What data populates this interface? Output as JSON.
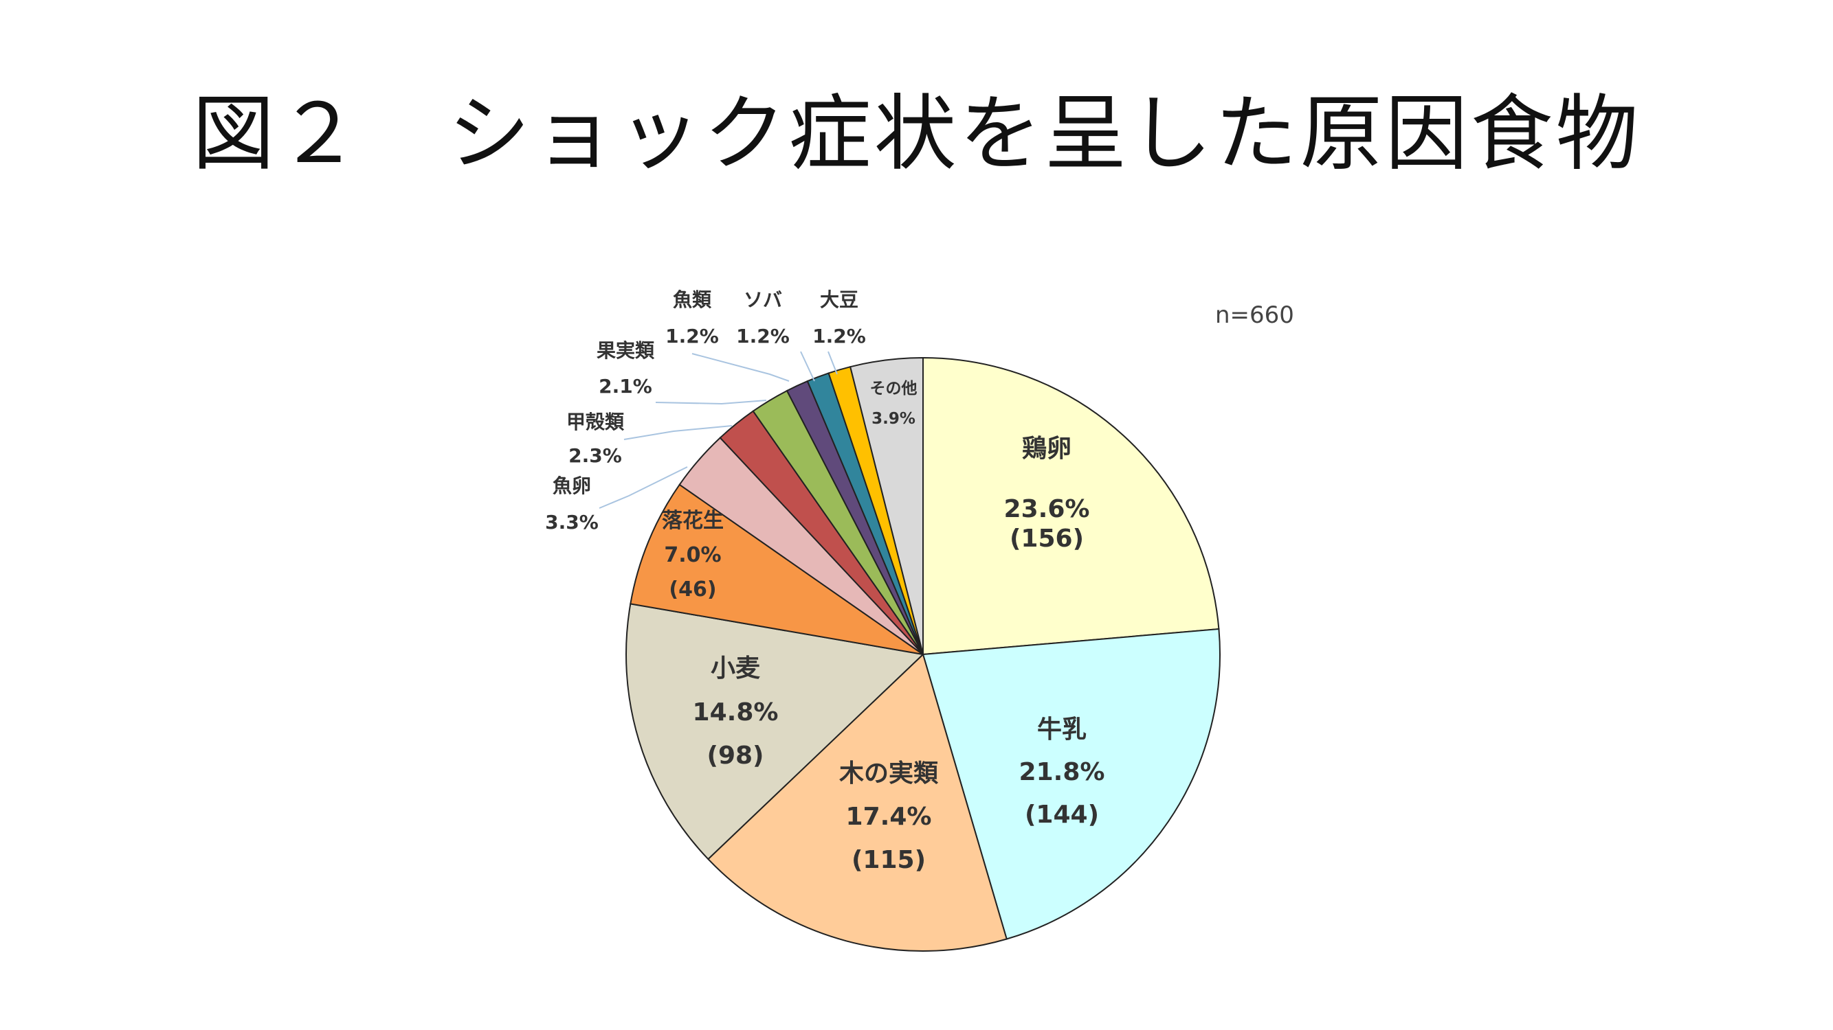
{
  "chart_data": {
    "type": "pie",
    "title": "図２　ショック症状を呈した原因食物",
    "annotation": "n=660",
    "start_angle_deg": 0,
    "direction": "clockwise",
    "slices": [
      {
        "label": "鶏卵",
        "pct_text": "23.6%",
        "count_text": "(156)",
        "value": 156,
        "color": "#FFFFCC"
      },
      {
        "label": "牛乳",
        "pct_text": "21.8%",
        "count_text": "(144)",
        "value": 144,
        "color": "#CCFFFF"
      },
      {
        "label": "木の実類",
        "pct_text": "17.4%",
        "count_text": "(115)",
        "value": 115,
        "color": "#FFCC99"
      },
      {
        "label": "小麦",
        "pct_text": "14.8%",
        "count_text": "(98)",
        "value": 98,
        "color": "#DDD9C4"
      },
      {
        "label": "落花生",
        "pct_text": "7.0%",
        "count_text": "(46)",
        "value": 46,
        "color": "#F79646"
      },
      {
        "label": "魚卵",
        "pct_text": "3.3%",
        "count_text": "",
        "value": 22,
        "color": "#E6B8B7"
      },
      {
        "label": "甲殻類",
        "pct_text": "2.3%",
        "count_text": "",
        "value": 15,
        "color": "#C0504D"
      },
      {
        "label": "果実類",
        "pct_text": "2.1%",
        "count_text": "",
        "value": 14,
        "color": "#9BBB59"
      },
      {
        "label": "魚類",
        "pct_text": "1.2%",
        "count_text": "",
        "value": 8,
        "color": "#604A7B"
      },
      {
        "label": "ソバ",
        "pct_text": "1.2%",
        "count_text": "",
        "value": 8,
        "color": "#31859C"
      },
      {
        "label": "大豆",
        "pct_text": "1.2%",
        "count_text": "",
        "value": 8,
        "color": "#FFC000"
      },
      {
        "label": "その他",
        "pct_text": "3.9%",
        "count_text": "",
        "value": 26,
        "color": "#D9D9D9"
      }
    ]
  }
}
